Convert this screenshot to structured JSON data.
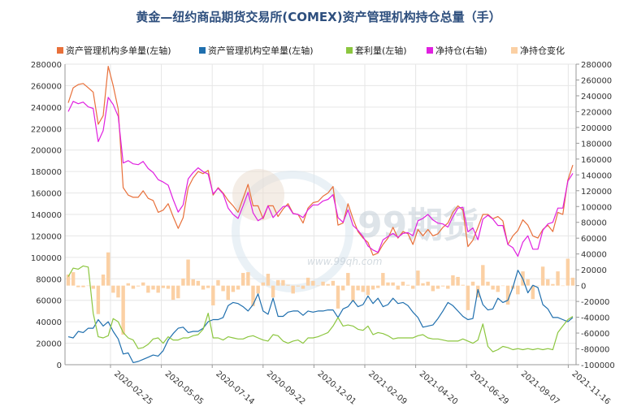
{
  "chart_data": {
    "type": "line",
    "title": "黄金—纽约商品期货交易所(COMEX)资产管理机构持仓总量（手）",
    "watermark": "99期货 www.99qh.com",
    "x_tick_labels": [
      "2020-02-25",
      "2020-05-05",
      "2020-07-14",
      "2020-09-22",
      "2020-12-01",
      "2021-02-09",
      "2021-04-20",
      "2021-06-29",
      "2021-09-07",
      "2021-11-16"
    ],
    "left_axis": {
      "min": 0,
      "max": 280000,
      "step": 20000,
      "ticks": [
        "0",
        "20000",
        "40000",
        "60000",
        "80000",
        "100000",
        "120000",
        "140000",
        "160000",
        "180000",
        "200000",
        "220000",
        "240000",
        "260000",
        "280000"
      ]
    },
    "right_axis": {
      "min": -100000,
      "max": 280000,
      "step": 20000,
      "ticks": [
        "-100000",
        "-80000",
        "-60000",
        "-40000",
        "-20000",
        "0",
        "20000",
        "40000",
        "60000",
        "80000",
        "100000",
        "120000",
        "140000",
        "160000",
        "180000",
        "200000",
        "220000",
        "240000",
        "260000",
        "280000"
      ]
    },
    "grid": true,
    "legend_position": "top",
    "series": [
      {
        "name": "资产管理机构多单量(左轴)",
        "axis": "left",
        "kind": "line",
        "color": "#e8703a",
        "values": [
          244000,
          258000,
          261000,
          262000,
          258000,
          254000,
          224000,
          232000,
          278000,
          260000,
          238000,
          165000,
          158000,
          156000,
          156000,
          162000,
          155000,
          153000,
          142000,
          144000,
          150000,
          138000,
          127000,
          137000,
          165000,
          174000,
          180000,
          178000,
          181000,
          158000,
          165000,
          160000,
          153000,
          148000,
          142000,
          155000,
          168000,
          148000,
          148000,
          136000,
          148000,
          148000,
          138000,
          145000,
          150000,
          141000,
          140000,
          132000,
          146000,
          151000,
          152000,
          157000,
          160000,
          166000,
          130000,
          132000,
          150000,
          136000,
          124000,
          118000,
          114000,
          102000,
          104000,
          112000,
          118000,
          128000,
          118000,
          124000,
          122000,
          112000,
          126000,
          120000,
          126000,
          120000,
          122000,
          128000,
          132000,
          142000,
          148000,
          144000,
          110000,
          116000,
          128000,
          140000,
          140000,
          136000,
          138000,
          134000,
          112000,
          120000,
          125000,
          135000,
          130000,
          120000,
          118000,
          126000,
          130000,
          124000,
          142000,
          140000,
          172000,
          186000
        ]
      },
      {
        "name": "资产管理机构空单量(左轴)",
        "axis": "left",
        "kind": "line",
        "color": "#1f6fae",
        "values": [
          26000,
          25000,
          31000,
          30000,
          34000,
          34000,
          42000,
          36000,
          40000,
          31000,
          24000,
          10000,
          11000,
          2000,
          3000,
          5000,
          7000,
          9000,
          8000,
          13000,
          23000,
          29000,
          34000,
          35000,
          30000,
          31000,
          31000,
          34000,
          40000,
          42000,
          42000,
          44000,
          55000,
          58000,
          57000,
          54000,
          50000,
          56000,
          66000,
          50000,
          47000,
          62000,
          45000,
          45000,
          49000,
          50000,
          50000,
          46000,
          50000,
          49000,
          50000,
          50000,
          51000,
          51000,
          44000,
          52000,
          54000,
          60000,
          54000,
          56000,
          64000,
          57000,
          62000,
          54000,
          56000,
          62000,
          57000,
          58000,
          55000,
          49000,
          44000,
          35000,
          36000,
          37000,
          43000,
          50000,
          58000,
          55000,
          50000,
          45000,
          42000,
          43000,
          70000,
          56000,
          51000,
          52000,
          62000,
          58000,
          60000,
          72000,
          88000,
          80000,
          67000,
          74000,
          72000,
          56000,
          52000,
          44000,
          44000,
          42000,
          40000,
          44000
        ]
      },
      {
        "name": "套利量(左轴)",
        "axis": "left",
        "kind": "line",
        "color": "#8cc63f",
        "values": [
          82000,
          90000,
          89000,
          92000,
          91000,
          48000,
          26000,
          25000,
          27000,
          43000,
          40000,
          30000,
          25000,
          23000,
          15000,
          16000,
          19000,
          24000,
          25000,
          20000,
          26000,
          23000,
          23000,
          25000,
          25000,
          27000,
          28000,
          33000,
          48000,
          25000,
          25000,
          23000,
          26000,
          25000,
          24000,
          24000,
          26000,
          27000,
          25000,
          23000,
          22000,
          28000,
          27000,
          22000,
          20000,
          22000,
          23000,
          20000,
          25000,
          25000,
          26000,
          28000,
          30000,
          36000,
          44000,
          36000,
          37000,
          36000,
          33000,
          32000,
          36000,
          28000,
          30000,
          29000,
          27000,
          24000,
          25000,
          25000,
          25000,
          25000,
          27000,
          28000,
          25000,
          24000,
          24000,
          23000,
          22000,
          22000,
          22000,
          24000,
          22000,
          20000,
          23000,
          38000,
          17000,
          12000,
          14000,
          17000,
          16000,
          14000,
          15000,
          14000,
          15000,
          14000,
          15000,
          14000,
          15000,
          14000,
          30000,
          36000,
          42000,
          45000
        ]
      },
      {
        "name": "净持仓(右轴)",
        "axis": "right",
        "kind": "line",
        "color": "#e020e0",
        "values": [
          220000,
          233000,
          230000,
          232000,
          226000,
          224000,
          182000,
          196000,
          238000,
          229000,
          214000,
          155000,
          158000,
          154000,
          153000,
          157000,
          148000,
          143000,
          134000,
          131000,
          127000,
          109000,
          93000,
          102000,
          135000,
          143000,
          149000,
          144000,
          141000,
          116000,
          123000,
          116000,
          98000,
          90000,
          85000,
          101000,
          118000,
          92000,
          82000,
          86000,
          101000,
          86000,
          93000,
          100000,
          101000,
          91000,
          90000,
          86000,
          96000,
          102000,
          102000,
          107000,
          109000,
          115000,
          86000,
          80000,
          96000,
          76000,
          70000,
          62000,
          50000,
          45000,
          42000,
          58000,
          62000,
          66000,
          61000,
          66000,
          67000,
          63000,
          82000,
          85000,
          90000,
          83000,
          79000,
          78000,
          74000,
          87000,
          98000,
          99000,
          68000,
          73000,
          58000,
          84000,
          89000,
          84000,
          76000,
          76000,
          52000,
          48000,
          37000,
          55000,
          63000,
          46000,
          46000,
          70000,
          78000,
          80000,
          98000,
          98000,
          132000,
          142000
        ]
      },
      {
        "name": "净持仓变化",
        "axis": "right",
        "kind": "bar",
        "color": "#fbd0a4",
        "values": [
          14000,
          17000,
          -2000,
          -2000,
          0,
          -4000,
          -36000,
          14000,
          42000,
          -9000,
          -15000,
          -62000,
          3000,
          -4000,
          -1000,
          4000,
          -9000,
          -5000,
          -9000,
          -3000,
          -4000,
          -18000,
          -16000,
          9000,
          33000,
          8000,
          6000,
          -5000,
          -3000,
          -25000,
          7000,
          -7000,
          -18000,
          -8000,
          -5000,
          16000,
          17000,
          -26000,
          -10000,
          4000,
          15000,
          -15000,
          7000,
          7000,
          1000,
          -10000,
          -1000,
          -4000,
          10000,
          6000,
          0,
          5000,
          2000,
          6000,
          -29000,
          -6000,
          16000,
          -20000,
          -6000,
          -8000,
          -12000,
          -5000,
          -3000,
          16000,
          4000,
          4000,
          -5000,
          5000,
          1000,
          -4000,
          19000,
          3000,
          5000,
          -7000,
          -4000,
          -1000,
          -4000,
          13000,
          11000,
          1000,
          -31000,
          5000,
          -15000,
          26000,
          5000,
          -5000,
          -8000,
          0,
          -24000,
          -4000,
          -11000,
          18000,
          8000,
          -17000,
          0,
          24000,
          8000,
          2000,
          18000,
          0,
          34000,
          10000
        ]
      }
    ]
  }
}
